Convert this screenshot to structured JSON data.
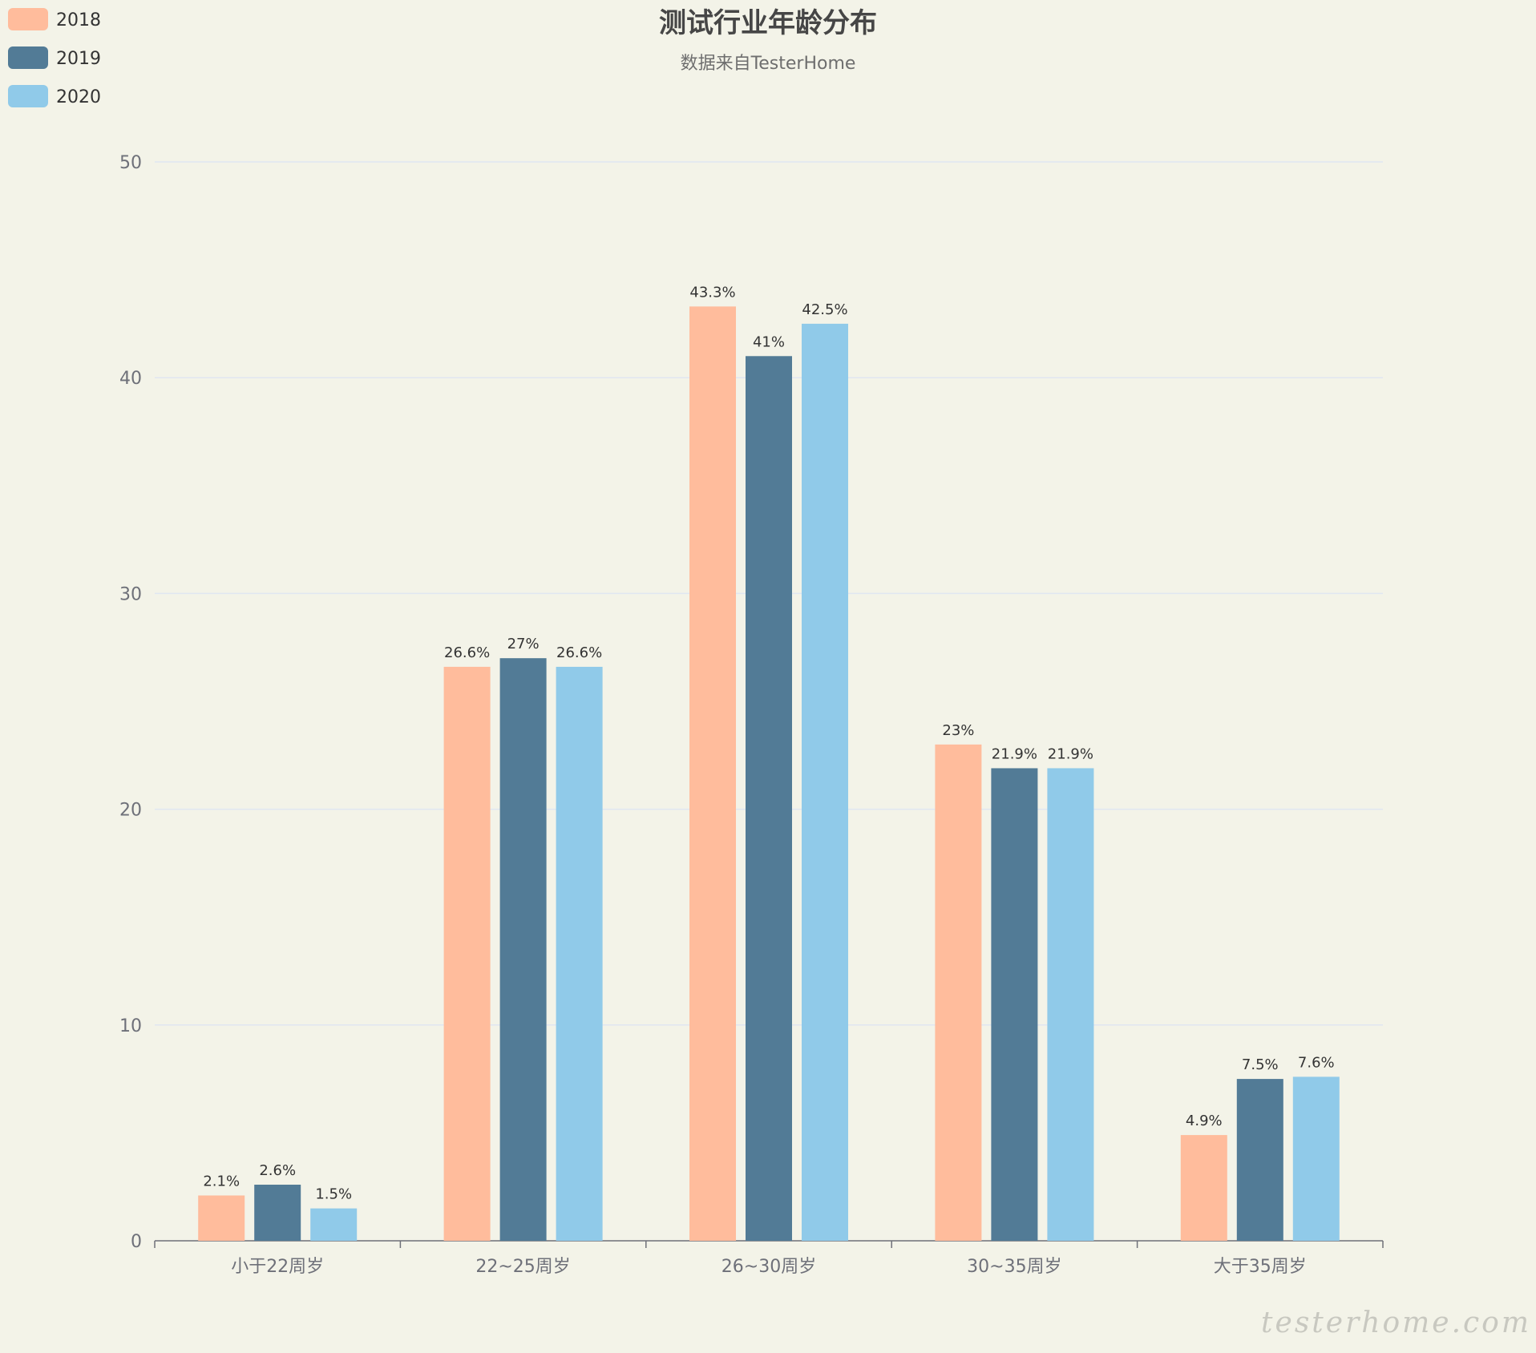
{
  "chart_data": {
    "type": "bar",
    "title": "测试行业年龄分布",
    "subtitle": "数据来自TesterHome",
    "categories": [
      "小于22周岁",
      "22~25周岁",
      "26~30周岁",
      "30~35周岁",
      "大于35周岁"
    ],
    "series": [
      {
        "name": "2018",
        "color": "#ffbc9c",
        "values": [
          2.1,
          26.6,
          43.3,
          23,
          4.9
        ]
      },
      {
        "name": "2019",
        "color": "#527b96",
        "values": [
          2.6,
          27,
          41,
          21.9,
          7.5
        ]
      },
      {
        "name": "2020",
        "color": "#90cae9",
        "values": [
          1.5,
          26.6,
          42.5,
          21.9,
          7.6
        ]
      }
    ],
    "yticks": [
      0,
      10,
      20,
      30,
      40,
      50
    ],
    "ylim": [
      0,
      50
    ],
    "label_suffix": "%",
    "grid": true,
    "legend_position": "top-left"
  },
  "watermark": "testerhome.com"
}
